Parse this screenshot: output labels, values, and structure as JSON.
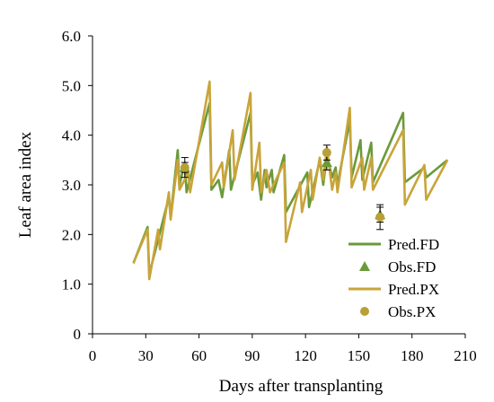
{
  "chart_data": {
    "type": "line",
    "title": "",
    "xlabel": "Days after transplanting",
    "ylabel": "Leaf area index",
    "xlim": [
      0,
      210
    ],
    "ylim": [
      0,
      6
    ],
    "x_ticks": [
      "0",
      "30",
      "60",
      "90",
      "120",
      "150",
      "180",
      "210"
    ],
    "y_ticks": [
      "0",
      "1.0",
      "2.0",
      "3.0",
      "4.0",
      "5.0",
      "6.0"
    ],
    "grid": false,
    "legend_position": "bottom-right",
    "series": [
      {
        "name": "Pred.FD",
        "kind": "line",
        "color": "#6a9a3a",
        "points": [
          [
            23,
            1.42
          ],
          [
            31,
            2.15
          ],
          [
            32,
            1.2
          ],
          [
            37,
            1.9
          ],
          [
            43,
            2.75
          ],
          [
            44,
            2.35
          ],
          [
            48,
            3.7
          ],
          [
            49,
            3.0
          ],
          [
            52,
            3.45
          ],
          [
            53,
            2.85
          ],
          [
            66,
            4.65
          ],
          [
            67,
            2.9
          ],
          [
            71,
            3.1
          ],
          [
            73,
            2.75
          ],
          [
            77,
            3.7
          ],
          [
            78,
            2.9
          ],
          [
            89,
            4.45
          ],
          [
            90,
            3.0
          ],
          [
            93,
            3.25
          ],
          [
            95,
            2.7
          ],
          [
            97,
            3.3
          ],
          [
            98,
            2.95
          ],
          [
            101,
            3.3
          ],
          [
            102,
            2.85
          ],
          [
            108,
            3.6
          ],
          [
            109,
            2.45
          ],
          [
            121,
            3.25
          ],
          [
            122,
            2.55
          ],
          [
            128,
            3.5
          ],
          [
            130,
            3.0
          ],
          [
            132,
            3.6
          ],
          [
            135,
            3.15
          ],
          [
            137,
            3.35
          ],
          [
            138,
            3.0
          ],
          [
            145,
            4.3
          ],
          [
            146,
            3.15
          ],
          [
            151,
            3.9
          ],
          [
            152,
            3.1
          ],
          [
            157,
            3.85
          ],
          [
            158,
            3.05
          ],
          [
            175,
            4.45
          ],
          [
            176,
            3.05
          ],
          [
            187,
            3.35
          ],
          [
            188,
            3.15
          ],
          [
            200,
            3.5
          ]
        ]
      },
      {
        "name": "Obs.FD",
        "kind": "marker",
        "marker": "triangle",
        "color": "#6a9a3a",
        "points": [
          [
            52,
            3.35
          ],
          [
            132,
            3.45
          ],
          [
            162,
            2.4
          ]
        ],
        "error": [
          0.1,
          0.15,
          0.15
        ]
      },
      {
        "name": "Pred.PX",
        "kind": "line",
        "color": "#c9a43a",
        "points": [
          [
            23,
            1.42
          ],
          [
            31,
            2.1
          ],
          [
            32,
            1.1
          ],
          [
            37,
            2.1
          ],
          [
            38,
            1.7
          ],
          [
            43,
            2.85
          ],
          [
            44,
            2.3
          ],
          [
            48,
            3.5
          ],
          [
            49,
            2.9
          ],
          [
            54,
            3.25
          ],
          [
            55,
            2.85
          ],
          [
            66,
            5.08
          ],
          [
            67,
            3.0
          ],
          [
            73,
            3.45
          ],
          [
            74,
            2.95
          ],
          [
            79,
            4.1
          ],
          [
            80,
            3.1
          ],
          [
            89,
            4.85
          ],
          [
            90,
            2.9
          ],
          [
            94,
            3.85
          ],
          [
            95,
            2.85
          ],
          [
            98,
            3.3
          ],
          [
            100,
            2.85
          ],
          [
            108,
            3.45
          ],
          [
            109,
            1.85
          ],
          [
            117,
            3.05
          ],
          [
            118,
            2.45
          ],
          [
            123,
            3.3
          ],
          [
            124,
            2.7
          ],
          [
            128,
            3.55
          ],
          [
            130,
            3.1
          ],
          [
            132,
            3.75
          ],
          [
            135,
            2.9
          ],
          [
            137,
            3.25
          ],
          [
            138,
            2.85
          ],
          [
            145,
            4.55
          ],
          [
            146,
            2.95
          ],
          [
            152,
            3.55
          ],
          [
            153,
            2.9
          ],
          [
            157,
            3.55
          ],
          [
            158,
            2.9
          ],
          [
            175,
            4.1
          ],
          [
            176,
            2.6
          ],
          [
            187,
            3.4
          ],
          [
            188,
            2.7
          ],
          [
            200,
            3.5
          ]
        ]
      },
      {
        "name": "Obs.PX",
        "kind": "marker",
        "marker": "circle",
        "color": "#b8a036",
        "points": [
          [
            52,
            3.35
          ],
          [
            132,
            3.65
          ],
          [
            162,
            2.35
          ]
        ],
        "error": [
          0.2,
          0.15,
          0.25
        ]
      }
    ]
  }
}
